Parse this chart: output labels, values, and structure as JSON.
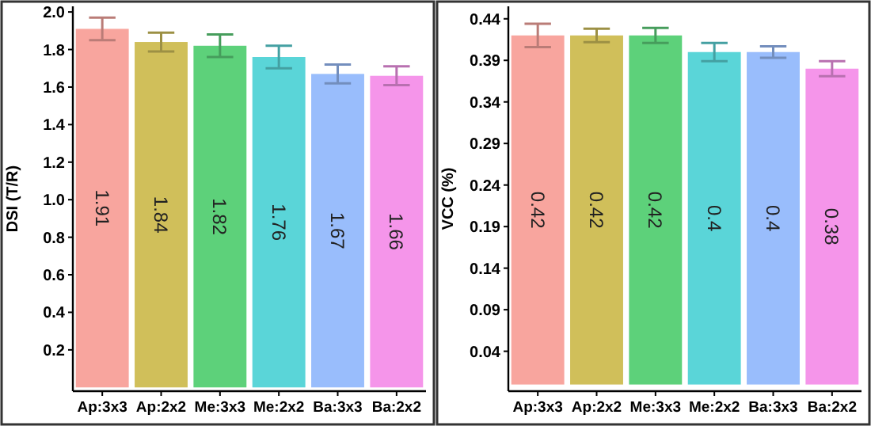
{
  "chart_data": [
    {
      "type": "bar",
      "ylabel": "DSI (T/R)",
      "categories": [
        "Ap:3x3",
        "Ap:2x2",
        "Me:3x3",
        "Me:2x2",
        "Ba:3x3",
        "Ba:2x2"
      ],
      "values": [
        1.91,
        1.84,
        1.82,
        1.76,
        1.67,
        1.66
      ],
      "errors": [
        0.06,
        0.05,
        0.06,
        0.06,
        0.05,
        0.05
      ],
      "colors": [
        "#f8a59e",
        "#d0bf5a",
        "#5dd17a",
        "#5ad5d8",
        "#99bdfc",
        "#f595ea"
      ],
      "ylim": [
        -0.02,
        2.03
      ],
      "yticks": [
        0.2,
        0.4,
        0.6,
        0.8,
        {
          "value": 1,
          "label": "1.0"
        },
        1.2,
        1.4,
        1.6,
        1.8,
        {
          "value": 2,
          "label": "2.0"
        }
      ],
      "data_labels": true,
      "grid": false
    },
    {
      "type": "bar",
      "ylabel": "VCC (%)",
      "categories": [
        "Ap:3x3",
        "Ap:2x2",
        "Me:3x3",
        "Me:2x2",
        "Ba:3x3",
        "Ba:2x2"
      ],
      "values": [
        0.42,
        0.42,
        0.42,
        0.4,
        0.4,
        0.38
      ],
      "errors": [
        0.014,
        0.008,
        0.009,
        0.011,
        0.007,
        0.009
      ],
      "colors": [
        "#f8a59e",
        "#d0bf5a",
        "#5dd17a",
        "#5ad5d8",
        "#99bdfc",
        "#f595ea"
      ],
      "ylim": [
        -0.008,
        0.455
      ],
      "yticks": [
        0.04,
        0.09,
        0.14,
        0.19,
        0.24,
        0.29,
        0.34,
        0.39,
        0.44
      ],
      "data_labels": true,
      "grid": false
    }
  ]
}
